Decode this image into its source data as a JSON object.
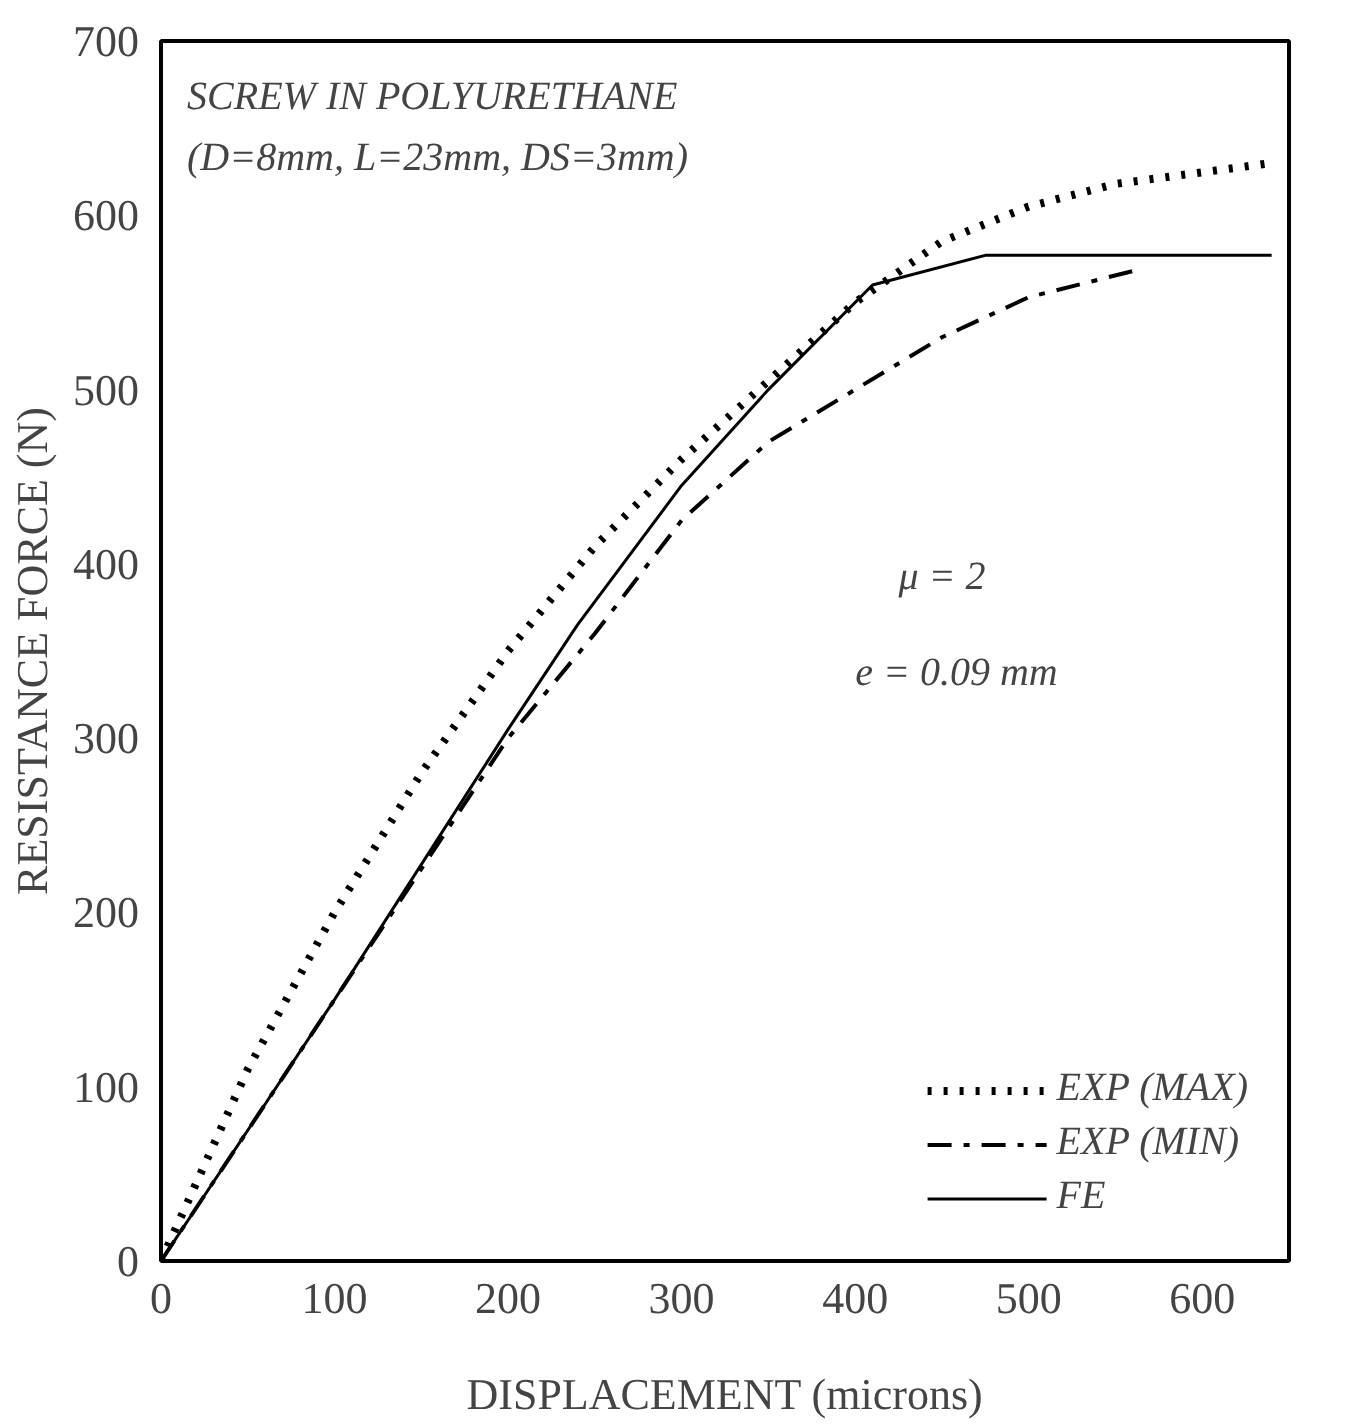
{
  "chart_data": {
    "type": "line",
    "title": "SCREW IN POLYURETHANE",
    "subtitle": "(D=8mm, L=23mm, DS=3mm)",
    "xlabel": "DISPLACEMENT (microns)",
    "ylabel": "RESISTANCE FORCE (N)",
    "annotations": [
      "μ = 2",
      "e = 0.09 mm"
    ],
    "xlim": [
      0,
      650
    ],
    "ylim": [
      0,
      700
    ],
    "xticks": [
      0,
      100,
      200,
      300,
      400,
      500,
      600
    ],
    "yticks": [
      0,
      100,
      200,
      300,
      400,
      500,
      600,
      700
    ],
    "grid": false,
    "legend": "bottom right",
    "marker": "none",
    "series": [
      {
        "name": "EXP (MAX)",
        "color": "#000000",
        "line_style": "dotted",
        "x": [
          0,
          25,
          50,
          100,
          150,
          200,
          250,
          300,
          350,
          400,
          450,
          500,
          550,
          640
        ],
        "values": [
          0,
          55,
          110,
          200,
          280,
          350,
          410,
          460,
          505,
          550,
          585,
          605,
          618,
          630
        ]
      },
      {
        "name": "EXP (MIN)",
        "color": "#000000",
        "line_style": "dashdot",
        "x": [
          0,
          100,
          200,
          250,
          300,
          350,
          400,
          450,
          500,
          560
        ],
        "values": [
          0,
          150,
          300,
          360,
          425,
          470,
          500,
          530,
          553,
          568
        ]
      },
      {
        "name": "FE",
        "color": "#000000",
        "line_style": "solid",
        "x": [
          0,
          100,
          200,
          240,
          300,
          350,
          410,
          475,
          640
        ],
        "values": [
          0,
          150,
          305,
          365,
          445,
          500,
          560,
          577,
          577
        ]
      }
    ]
  }
}
